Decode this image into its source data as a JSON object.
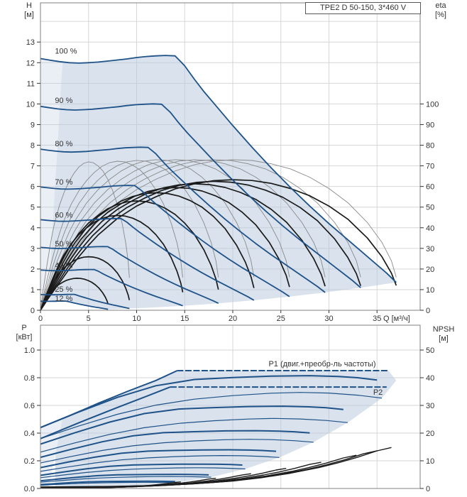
{
  "title_box": {
    "text": "TPE2 D 50-150, 3*460 V"
  },
  "labels": {
    "h_axis": "H\n[м]",
    "eta_axis": "eta\n[%]",
    "p_axis": "P\n[кВт]",
    "npsh_axis": "NPSH\n[м]",
    "q_unit": "Q [м³/ч]"
  },
  "colors": {
    "curve_blue": "#1e5288",
    "curve_black": "#1a1a1a",
    "curve_gray": "#8a8a8a",
    "fill_blue": "#b9cbdf",
    "grid": "#d6d6d6",
    "frame": "#808080",
    "text": "#333333",
    "label_blue": "#1f5c99"
  },
  "chart_data": [
    {
      "type": "line",
      "title": "TPE2 D 50-150, 3*460 V",
      "xlabel": "Q [м³/ч]",
      "ylabel_left": "H [м]",
      "ylabel_right": "eta [%]",
      "x_ticks": [
        0,
        5,
        10,
        15,
        20,
        25,
        30,
        35
      ],
      "xlim": [
        0,
        39.5
      ],
      "h_ticks": [
        0,
        1,
        2,
        3,
        4,
        5,
        6,
        7,
        8,
        9,
        10,
        11,
        12,
        13
      ],
      "hlim": [
        0,
        14.9
      ],
      "eta_ticks": [
        0,
        10,
        20,
        30,
        40,
        50,
        60,
        70,
        80,
        90,
        100
      ],
      "grid": true,
      "speed_curves": [
        {
          "label": "100 %",
          "s": 1.0,
          "label_h": 12.55
        },
        {
          "label": "90 %",
          "s": 0.9,
          "label_h": 10.15
        },
        {
          "label": "80 %",
          "s": 0.8,
          "label_h": 8.05
        },
        {
          "label": "70 %",
          "s": 0.7,
          "label_h": 6.2
        },
        {
          "label": "60 %",
          "s": 0.6,
          "label_h": 4.6
        },
        {
          "label": "50 %",
          "s": 0.5,
          "label_h": 3.2
        },
        {
          "label": "40 %",
          "s": 0.4,
          "label_h": 2.15
        },
        {
          "label": "25 %",
          "s": 0.25,
          "label_h": 1.0
        },
        {
          "label": "12 %",
          "s": 0.19,
          "label_h": 0.55
        }
      ],
      "qh_100": [
        [
          0,
          12.2
        ],
        [
          1,
          12.12
        ],
        [
          2,
          12.05
        ],
        [
          3,
          12.0
        ],
        [
          4,
          11.98
        ],
        [
          5,
          12.0
        ],
        [
          6,
          12.03
        ],
        [
          7,
          12.08
        ],
        [
          8,
          12.13
        ],
        [
          9,
          12.18
        ],
        [
          10,
          12.25
        ],
        [
          11,
          12.3
        ],
        [
          12,
          12.33
        ],
        [
          13,
          12.35
        ],
        [
          14,
          12.33
        ],
        [
          15,
          11.85
        ],
        [
          16,
          11.2
        ],
        [
          17,
          10.6
        ],
        [
          18,
          10.05
        ],
        [
          20,
          8.95
        ],
        [
          22,
          7.9
        ],
        [
          24,
          6.9
        ],
        [
          26,
          5.95
        ],
        [
          28,
          5.05
        ],
        [
          30,
          4.2
        ],
        [
          32,
          3.4
        ],
        [
          34,
          2.6
        ],
        [
          36,
          1.8
        ],
        [
          37,
          1.35
        ]
      ],
      "eta_pump_100": [
        [
          0,
          0
        ],
        [
          1,
          9
        ],
        [
          2,
          17
        ],
        [
          3,
          24.5
        ],
        [
          4,
          31.5
        ],
        [
          5,
          38
        ],
        [
          6,
          43.5
        ],
        [
          8,
          52
        ],
        [
          10,
          58.5
        ],
        [
          12,
          63.5
        ],
        [
          14,
          67.5
        ],
        [
          16,
          70.5
        ],
        [
          18,
          72.3
        ],
        [
          20,
          73
        ],
        [
          22,
          72.6
        ],
        [
          24,
          71
        ],
        [
          26,
          68.5
        ],
        [
          28,
          64.5
        ],
        [
          30,
          59
        ],
        [
          32,
          52
        ],
        [
          34,
          42.5
        ],
        [
          35.5,
          33
        ],
        [
          36.5,
          24
        ],
        [
          37,
          16
        ]
      ],
      "eta_pump_speeds": [
        1,
        0.9,
        0.8,
        0.7,
        0.6,
        0.5,
        0.4,
        0.25
      ],
      "eta_pump_peak_factors": [
        1,
        1,
        1,
        1,
        1,
        0.995,
        0.99,
        0.985
      ],
      "eta_total_100": [
        [
          0,
          0
        ],
        [
          1,
          7
        ],
        [
          2,
          13.5
        ],
        [
          3,
          20
        ],
        [
          4,
          26
        ],
        [
          5,
          31.5
        ],
        [
          6,
          36.5
        ],
        [
          8,
          44.5
        ],
        [
          10,
          50.5
        ],
        [
          12,
          55
        ],
        [
          14,
          58.8
        ],
        [
          16,
          61.3
        ],
        [
          18,
          62.8
        ],
        [
          20,
          63.3
        ],
        [
          22,
          62.9
        ],
        [
          24,
          61.5
        ],
        [
          26,
          59
        ],
        [
          28,
          55.5
        ],
        [
          30,
          50.5
        ],
        [
          32,
          44
        ],
        [
          34,
          35
        ],
        [
          35.5,
          26
        ],
        [
          36.5,
          18
        ],
        [
          37,
          12
        ]
      ],
      "eta_total_speeds": [
        1,
        0.9,
        0.8,
        0.7,
        0.6,
        0.5,
        0.4,
        0.25,
        0.19
      ],
      "eta_total_peak_factors": [
        1,
        0.987,
        0.968,
        0.94,
        0.9,
        0.837,
        0.726,
        0.41,
        0.245
      ],
      "envelope_end_locus_s": [
        1,
        0.9,
        0.8,
        0.7,
        0.6,
        0.5,
        0.4,
        0.3,
        0.19
      ],
      "min_flow_line": {
        "q_at_h0": 0.75,
        "q_per_h": 0.128
      }
    },
    {
      "type": "line",
      "ylabel_left": "P [кВт]",
      "ylabel_right": "NPSH [м]",
      "p_ticks": [
        "0.0",
        "0.2",
        "0.4",
        "0.6",
        "0.8",
        "1.0"
      ],
      "plim": [
        0,
        1.18
      ],
      "npsh_ticks": [
        0,
        10,
        20,
        30,
        40,
        50
      ],
      "grid": true,
      "p1_label": "P1 (двиг.+преобр-ль частоты)",
      "p2_label": "P2",
      "p1_env_100": [
        [
          0,
          0.44
        ],
        [
          3,
          0.525
        ],
        [
          6,
          0.615
        ],
        [
          9,
          0.7
        ],
        [
          12,
          0.78
        ],
        [
          14.2,
          0.851
        ],
        [
          36.2,
          0.851
        ]
      ],
      "p2_env_100": [
        [
          0,
          0.36
        ],
        [
          4,
          0.475
        ],
        [
          8,
          0.585
        ],
        [
          11,
          0.665
        ],
        [
          13.5,
          0.733
        ],
        [
          36,
          0.733
        ]
      ],
      "p1_arc_100": [
        [
          0,
          0.44
        ],
        [
          4,
          0.553
        ],
        [
          8,
          0.658
        ],
        [
          12,
          0.742
        ],
        [
          16,
          0.787
        ],
        [
          20,
          0.801
        ],
        [
          24,
          0.812
        ],
        [
          28,
          0.815
        ],
        [
          31,
          0.809
        ],
        [
          33,
          0.8
        ],
        [
          35,
          0.783
        ]
      ],
      "p2_arc_100": [
        [
          0,
          0.36
        ],
        [
          4,
          0.452
        ],
        [
          8,
          0.536
        ],
        [
          12,
          0.602
        ],
        [
          16,
          0.645
        ],
        [
          20,
          0.671
        ],
        [
          24,
          0.688
        ],
        [
          27,
          0.694
        ],
        [
          30,
          0.689
        ],
        [
          33,
          0.674
        ],
        [
          35.5,
          0.653
        ]
      ],
      "p_speeds": [
        0.9,
        0.8,
        0.7,
        0.6,
        0.5,
        0.4,
        0.25,
        0.19
      ],
      "npsh_100": [
        [
          0,
          0.55
        ],
        [
          4,
          0.62
        ],
        [
          8,
          0.78
        ],
        [
          12,
          1.1
        ],
        [
          16,
          1.7
        ],
        [
          20,
          2.7
        ],
        [
          23,
          3.9
        ],
        [
          26,
          5.5
        ],
        [
          29,
          7.6
        ],
        [
          31,
          9.3
        ],
        [
          33,
          11.3
        ],
        [
          35,
          13.6
        ],
        [
          36.5,
          14.8
        ]
      ],
      "npsh_speeds": [
        1.0,
        0.96,
        0.9,
        0.8,
        0.7,
        0.6,
        0.5,
        0.4
      ],
      "min_flow_line": {
        "q_at_p0": 0.85,
        "q_per_p": 2.86
      }
    }
  ]
}
